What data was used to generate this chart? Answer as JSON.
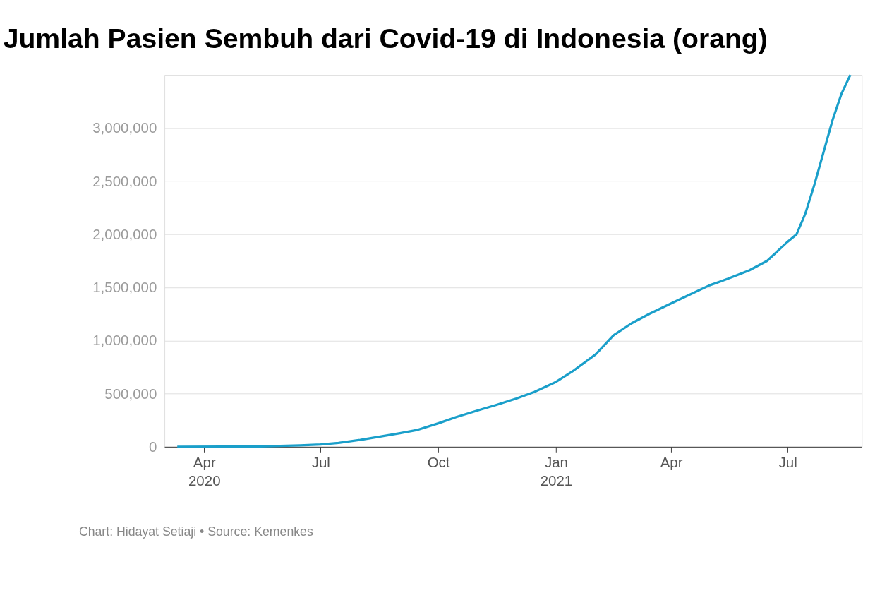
{
  "chart_data": {
    "type": "line",
    "title": "Jumlah Pasien Sembuh dari Covid-19 di Indonesia (orang)",
    "annotations": [
      "Chart: Hidayat Setiaji • Source: Kemenkes"
    ],
    "x": [
      "2020-03-11",
      "2020-04-15",
      "2020-05-15",
      "2020-06-15",
      "2020-07-01",
      "2020-07-15",
      "2020-08-01",
      "2020-08-15",
      "2020-09-01",
      "2020-09-15",
      "2020-10-01",
      "2020-10-15",
      "2020-11-01",
      "2020-11-15",
      "2020-12-01",
      "2020-12-15",
      "2021-01-01",
      "2021-01-15",
      "2021-02-01",
      "2021-02-15",
      "2021-03-01",
      "2021-03-15",
      "2021-04-01",
      "2021-04-15",
      "2021-05-01",
      "2021-05-15",
      "2021-06-01",
      "2021-06-15",
      "2021-07-01",
      "2021-07-08",
      "2021-07-15",
      "2021-07-22",
      "2021-07-29",
      "2021-08-05",
      "2021-08-12",
      "2021-08-19"
    ],
    "series": [
      {
        "color": "#1a9fca",
        "values": [
          0,
          1000,
          4000,
          14000,
          22000,
          37000,
          65000,
          93000,
          128000,
          160000,
          221000,
          280000,
          343000,
          393000,
          454000,
          516000,
          611000,
          720000,
          870000,
          1050000,
          1162000,
          1252000,
          1350000,
          1430000,
          1520000,
          1580000,
          1660000,
          1750000,
          1930000,
          2000000,
          2200000,
          2470000,
          2770000,
          3070000,
          3320000,
          3500000
        ]
      }
    ],
    "xlim": [
      "2020-03-01",
      "2021-08-28"
    ],
    "xticks": [
      {
        "value": "2020-04-01",
        "label": "Apr\n2020"
      },
      {
        "value": "2020-07-01",
        "label": "Jul"
      },
      {
        "value": "2020-10-01",
        "label": "Oct"
      },
      {
        "value": "2021-01-01",
        "label": "Jan\n2021"
      },
      {
        "value": "2021-04-01",
        "label": "Apr"
      },
      {
        "value": "2021-07-01",
        "label": "Jul"
      }
    ],
    "ylim": [
      0,
      3500000
    ],
    "yticks": [
      0,
      {
        "value": 500000,
        "label": "500,000"
      },
      {
        "value": 1000000,
        "label": "1,000,000"
      },
      {
        "value": 1500000,
        "label": "1,500,000"
      },
      {
        "value": 2000000,
        "label": "2,000,000"
      },
      {
        "value": 2500000,
        "label": "2,500,000"
      },
      {
        "value": 3000000,
        "label": "3,000,000"
      }
    ],
    "grid": "y",
    "legend": false,
    "marker": "none",
    "line_style": "solid"
  }
}
